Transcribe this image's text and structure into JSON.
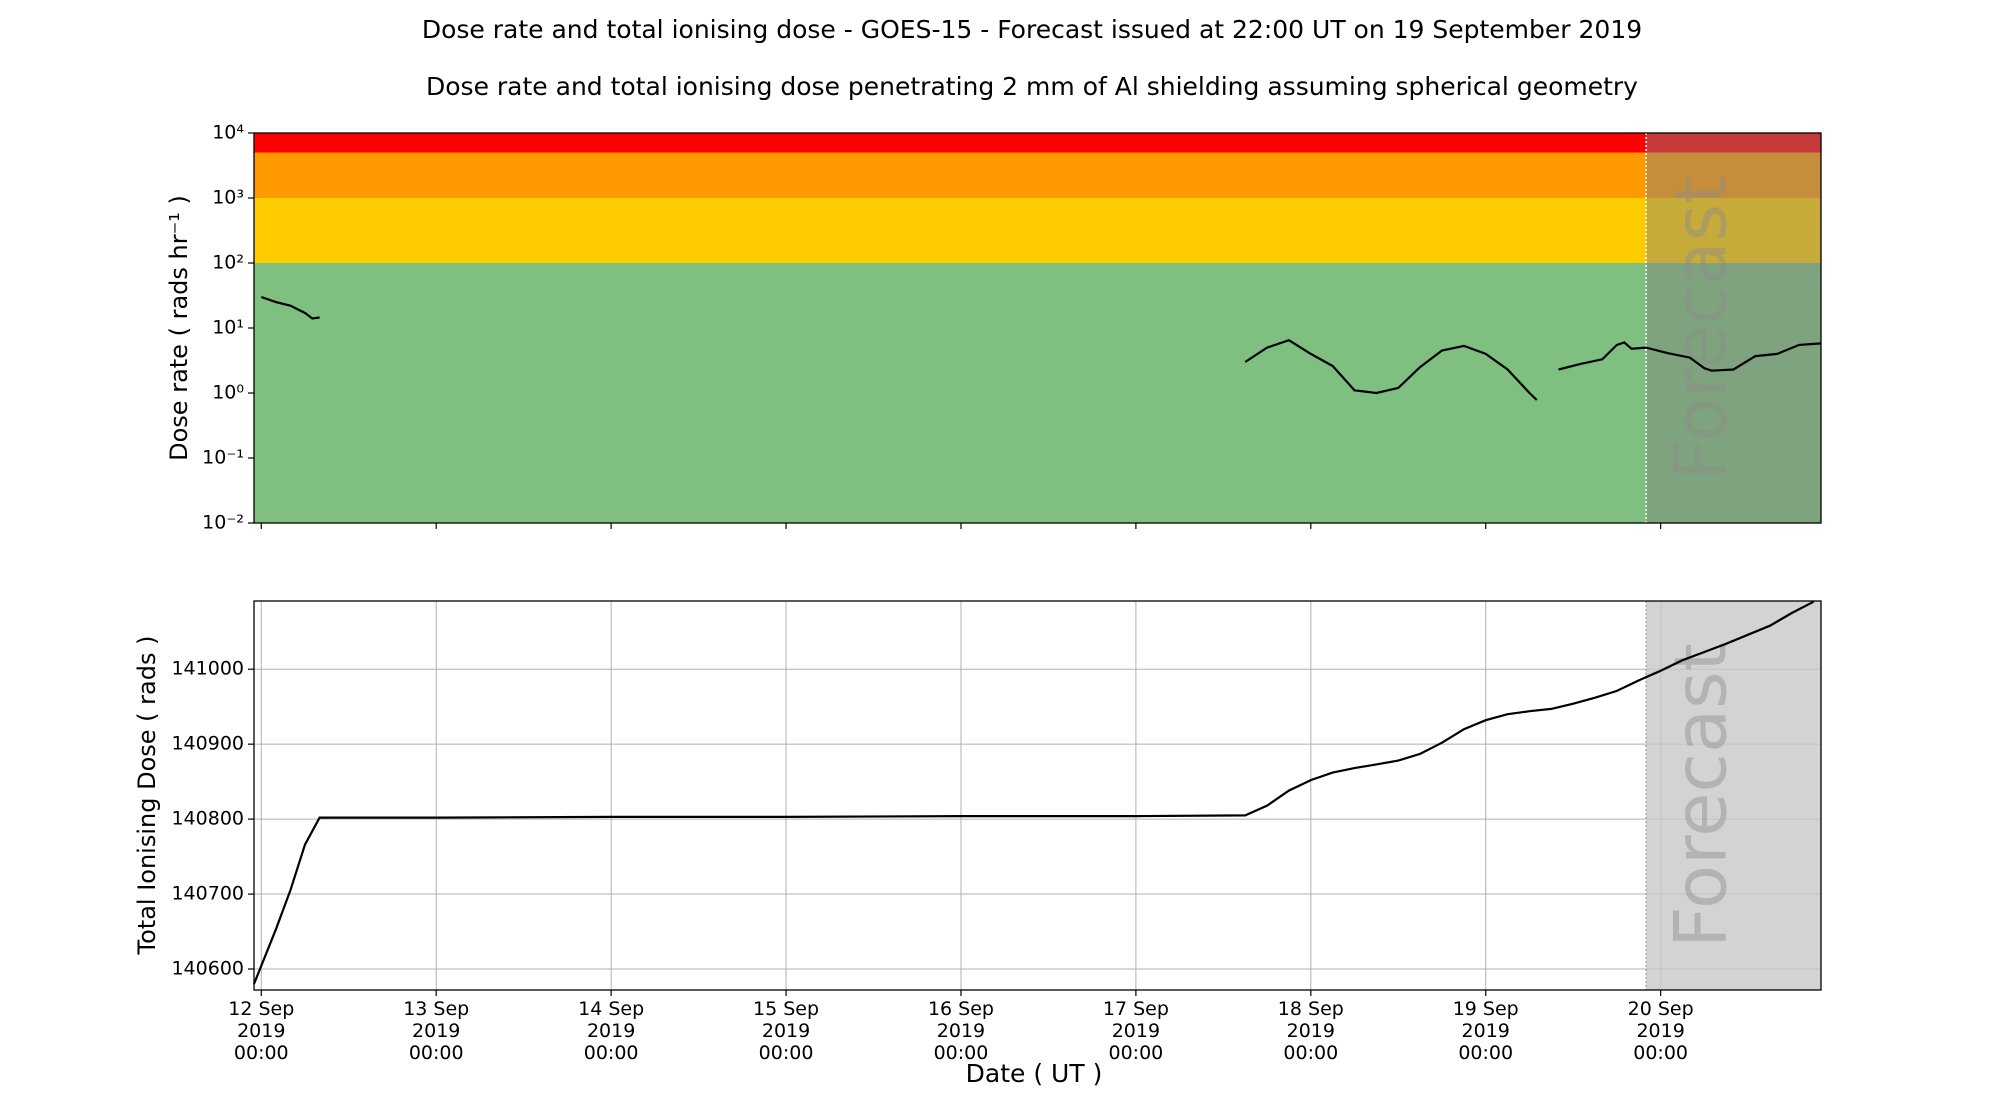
{
  "chart_data": [
    {
      "type": "line",
      "title": "Dose rate and total ionising dose - GOES-15 - Forecast issued at 22:00 UT on 19 September 2019",
      "subtitle": "Dose rate and total ionising dose penetrating 2 mm of Al shielding assuming spherical geometry",
      "ylabel": "Dose rate ( rads hr⁻¹ )",
      "ylog": true,
      "grid": false,
      "xlim": [
        "2019-09-11T23:00",
        "2019-09-20T22:00"
      ],
      "ylim": [
        0.01,
        10000
      ],
      "yticks": [
        {
          "value": 0.01,
          "label": "10⁻²"
        },
        {
          "value": 0.1,
          "label": "10⁻¹"
        },
        {
          "value": 1,
          "label": "10⁰"
        },
        {
          "value": 10,
          "label": "10¹"
        },
        {
          "value": 100,
          "label": "10²"
        },
        {
          "value": 1000,
          "label": "10³"
        },
        {
          "value": 10000,
          "label": "10⁴"
        }
      ],
      "bands": [
        {
          "from": 0.01,
          "to": 100,
          "color": "#7fbf7f"
        },
        {
          "from": 100,
          "to": 1000,
          "color": "#ffcc00"
        },
        {
          "from": 1000,
          "to": 5000,
          "color": "#ff9900"
        },
        {
          "from": 5000,
          "to": 10000,
          "color": "#ff0000"
        }
      ],
      "forecast_start": "2019-09-19T22:00",
      "annotation": "Forecast",
      "x": [
        "2019-09-12T00:00",
        "2019-09-12T02:00",
        "2019-09-12T04:00",
        "2019-09-12T06:00",
        "2019-09-12T07:00",
        "2019-09-12T08:00",
        "2019-09-14T12:00",
        "2019-09-17T15:00",
        "2019-09-17T18:00",
        "2019-09-17T21:00",
        "2019-09-18T00:00",
        "2019-09-18T03:00",
        "2019-09-18T06:00",
        "2019-09-18T09:00",
        "2019-09-18T12:00",
        "2019-09-18T15:00",
        "2019-09-18T18:00",
        "2019-09-18T21:00",
        "2019-09-19T00:00",
        "2019-09-19T03:00",
        "2019-09-19T06:00",
        "2019-09-19T07:00",
        "2019-09-19T08:00",
        "2019-09-19T10:00",
        "2019-09-19T13:00",
        "2019-09-19T16:00",
        "2019-09-19T18:00",
        "2019-09-19T19:00",
        "2019-09-19T20:00",
        "2019-09-19T22:00",
        "2019-09-20T01:00",
        "2019-09-20T04:00",
        "2019-09-20T06:00",
        "2019-09-20T07:00",
        "2019-09-20T10:00",
        "2019-09-20T13:00",
        "2019-09-20T16:00",
        "2019-09-20T19:00",
        "2019-09-20T22:00"
      ],
      "series": [
        {
          "color": "#000000",
          "values": [
            30,
            25,
            22,
            17,
            14,
            14.5,
            null,
            3.0,
            5.0,
            6.5,
            4.0,
            2.6,
            1.1,
            1.0,
            1.2,
            2.5,
            4.5,
            5.3,
            4.0,
            2.3,
            1.0,
            0.78,
            null,
            2.3,
            2.8,
            3.3,
            5.5,
            6.0,
            4.8,
            5.0,
            4.1,
            3.5,
            2.4,
            2.2,
            2.3,
            3.7,
            4.0,
            5.5,
            5.8
          ]
        }
      ]
    },
    {
      "type": "line",
      "ylabel": "Total Ionising Dose ( rads )",
      "xlabel": "Date ( UT )",
      "grid": true,
      "xlim": [
        "2019-09-11T23:00",
        "2019-09-20T22:00"
      ],
      "xticks": [
        {
          "value": "2019-09-12T00:00",
          "label": "12 Sep\n2019\n00:00"
        },
        {
          "value": "2019-09-13T00:00",
          "label": "13 Sep\n2019\n00:00"
        },
        {
          "value": "2019-09-14T00:00",
          "label": "14 Sep\n2019\n00:00"
        },
        {
          "value": "2019-09-15T00:00",
          "label": "15 Sep\n2019\n00:00"
        },
        {
          "value": "2019-09-16T00:00",
          "label": "16 Sep\n2019\n00:00"
        },
        {
          "value": "2019-09-17T00:00",
          "label": "17 Sep\n2019\n00:00"
        },
        {
          "value": "2019-09-18T00:00",
          "label": "18 Sep\n2019\n00:00"
        },
        {
          "value": "2019-09-19T00:00",
          "label": "19 Sep\n2019\n00:00"
        },
        {
          "value": "2019-09-20T00:00",
          "label": "20 Sep\n2019\n00:00"
        }
      ],
      "ylim": [
        140572,
        141091
      ],
      "yticks": [
        140600,
        140700,
        140800,
        140900,
        141000
      ],
      "forecast_start": "2019-09-19T22:00",
      "annotation": "Forecast",
      "x": [
        "2019-09-11T23:00",
        "2019-09-12T02:00",
        "2019-09-12T04:00",
        "2019-09-12T06:00",
        "2019-09-12T08:00",
        "2019-09-13T00:00",
        "2019-09-14T00:00",
        "2019-09-15T00:00",
        "2019-09-16T00:00",
        "2019-09-17T00:00",
        "2019-09-17T15:00",
        "2019-09-17T18:00",
        "2019-09-17T21:00",
        "2019-09-18T00:00",
        "2019-09-18T03:00",
        "2019-09-18T06:00",
        "2019-09-18T09:00",
        "2019-09-18T12:00",
        "2019-09-18T15:00",
        "2019-09-18T18:00",
        "2019-09-18T21:00",
        "2019-09-19T00:00",
        "2019-09-19T03:00",
        "2019-09-19T06:00",
        "2019-09-19T09:00",
        "2019-09-19T12:00",
        "2019-09-19T15:00",
        "2019-09-19T18:00",
        "2019-09-19T21:00",
        "2019-09-20T00:00",
        "2019-09-20T03:00",
        "2019-09-20T06:00",
        "2019-09-20T09:00",
        "2019-09-20T12:00",
        "2019-09-20T15:00",
        "2019-09-20T18:00",
        "2019-09-20T21:00"
      ],
      "series": [
        {
          "color": "#000000",
          "values": [
            140580,
            140653,
            140705,
            140766,
            140802,
            140802,
            140803,
            140803,
            140804,
            140804,
            140805,
            140818,
            140838,
            140852,
            140862,
            140868,
            140873,
            140878,
            140887,
            140902,
            140920,
            140932,
            140940,
            140944,
            140947,
            140954,
            140962,
            140971,
            140985,
            140998,
            141012,
            141023,
            141034,
            141046,
            141058,
            141075,
            141090
          ]
        }
      ]
    }
  ]
}
